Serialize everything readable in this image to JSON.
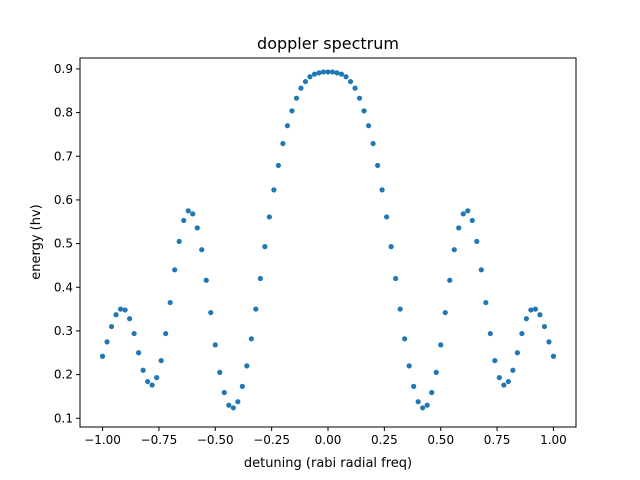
{
  "chart_data": {
    "type": "scatter",
    "title": "doppler spectrum",
    "xlabel": "detuning (rabi radial freq)",
    "ylabel": "energy (hv)",
    "xlim": [
      -1.1,
      1.1
    ],
    "ylim": [
      0.08,
      0.925
    ],
    "xticks": [
      -1.0,
      -0.75,
      -0.5,
      -0.25,
      0.0,
      0.25,
      0.5,
      0.75,
      1.0
    ],
    "xtick_labels": [
      "−1.00",
      "−0.75",
      "−0.50",
      "−0.25",
      "0.00",
      "0.25",
      "0.50",
      "0.75",
      "1.00"
    ],
    "yticks": [
      0.1,
      0.2,
      0.3,
      0.4,
      0.5,
      0.6,
      0.7,
      0.8,
      0.9
    ],
    "ytick_labels": [
      "0.1",
      "0.2",
      "0.3",
      "0.4",
      "0.5",
      "0.6",
      "0.7",
      "0.8",
      "0.9"
    ],
    "grid": false,
    "series": [
      {
        "color": "#1f77b4",
        "x": [
          -1.0,
          -0.98,
          -0.96,
          -0.94,
          -0.92,
          -0.9,
          -0.88,
          -0.86,
          -0.84,
          -0.82,
          -0.8,
          -0.78,
          -0.76,
          -0.74,
          -0.72,
          -0.7,
          -0.68,
          -0.66,
          -0.64,
          -0.62,
          -0.6,
          -0.58,
          -0.56,
          -0.54,
          -0.52,
          -0.5,
          -0.48,
          -0.46,
          -0.44,
          -0.42,
          -0.4,
          -0.38,
          -0.36,
          -0.34,
          -0.32,
          -0.3,
          -0.28,
          -0.26,
          -0.24,
          -0.22,
          -0.2,
          -0.18,
          -0.16,
          -0.14,
          -0.12,
          -0.1,
          -0.08,
          -0.06,
          -0.04,
          -0.02,
          0.0,
          0.02,
          0.04,
          0.06,
          0.08,
          0.1,
          0.12,
          0.14,
          0.16,
          0.18,
          0.2,
          0.22,
          0.24,
          0.26,
          0.28,
          0.3,
          0.32,
          0.34,
          0.36,
          0.38,
          0.4,
          0.42,
          0.44,
          0.46,
          0.48,
          0.5,
          0.52,
          0.54,
          0.56,
          0.58,
          0.6,
          0.62,
          0.64,
          0.66,
          0.68,
          0.7,
          0.72,
          0.74,
          0.76,
          0.78,
          0.8,
          0.82,
          0.84,
          0.86,
          0.88,
          0.9,
          0.92,
          0.94,
          0.96,
          0.98,
          1.0
        ],
        "y": [
          0.242,
          0.275,
          0.31,
          0.337,
          0.35,
          0.348,
          0.328,
          0.294,
          0.25,
          0.21,
          0.184,
          0.176,
          0.193,
          0.232,
          0.294,
          0.365,
          0.44,
          0.505,
          0.553,
          0.575,
          0.568,
          0.536,
          0.486,
          0.416,
          0.342,
          0.268,
          0.205,
          0.159,
          0.13,
          0.124,
          0.138,
          0.173,
          0.22,
          0.282,
          0.35,
          0.42,
          0.493,
          0.561,
          0.623,
          0.679,
          0.729,
          0.77,
          0.804,
          0.833,
          0.856,
          0.871,
          0.882,
          0.888,
          0.891,
          0.893,
          0.893,
          0.893,
          0.891,
          0.888,
          0.882,
          0.871,
          0.856,
          0.833,
          0.804,
          0.77,
          0.729,
          0.679,
          0.623,
          0.561,
          0.493,
          0.42,
          0.35,
          0.282,
          0.22,
          0.173,
          0.138,
          0.124,
          0.13,
          0.159,
          0.205,
          0.268,
          0.342,
          0.416,
          0.486,
          0.536,
          0.568,
          0.575,
          0.553,
          0.505,
          0.44,
          0.365,
          0.294,
          0.232,
          0.193,
          0.176,
          0.184,
          0.21,
          0.25,
          0.294,
          0.328,
          0.348,
          0.35,
          0.337,
          0.31,
          0.275,
          0.242
        ]
      }
    ]
  }
}
